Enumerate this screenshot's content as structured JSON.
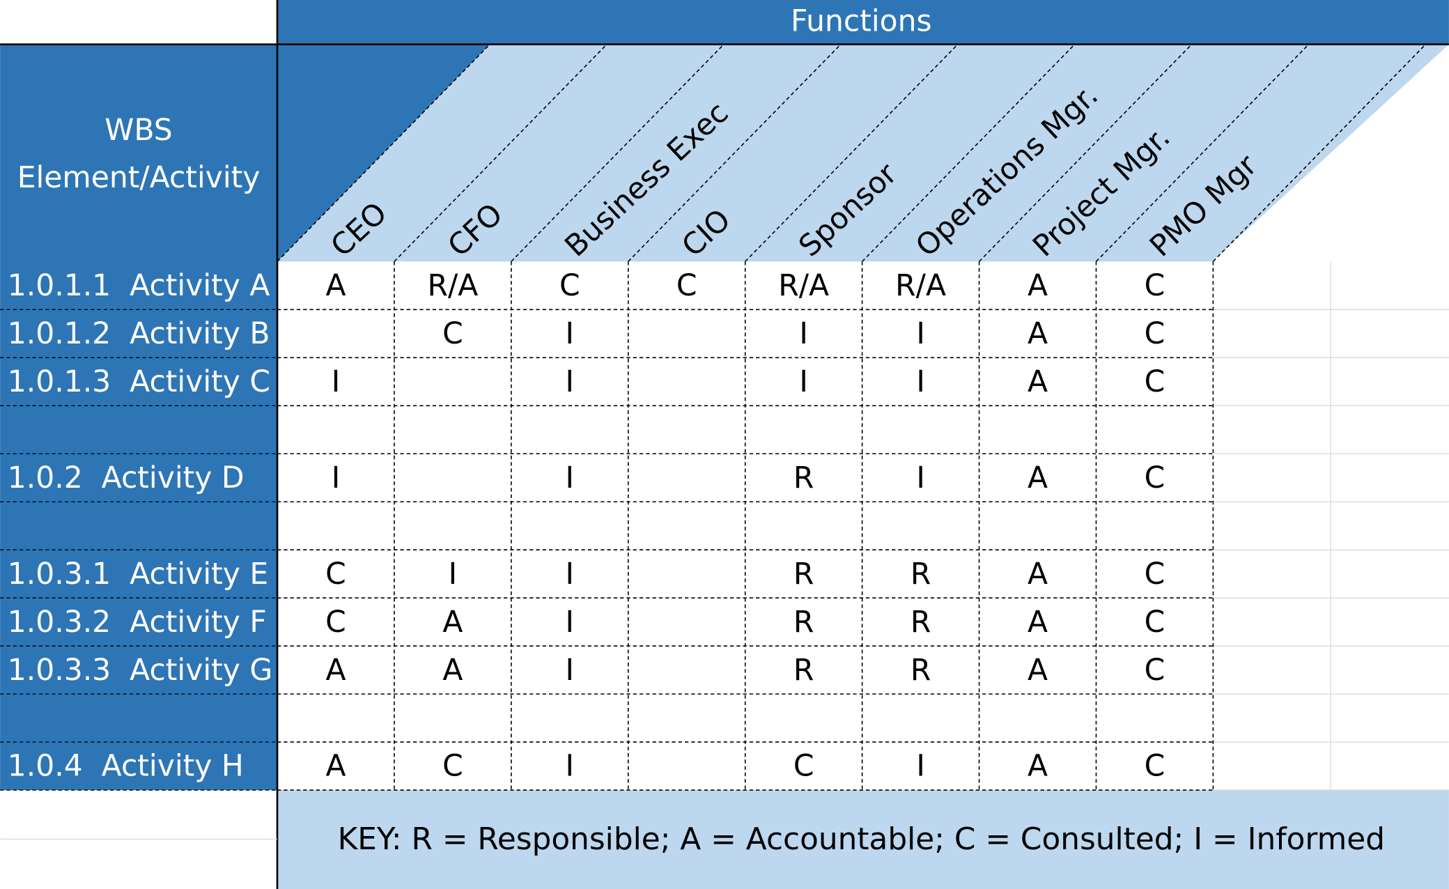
{
  "header": {
    "functions": "Functions",
    "wbs_lines": [
      "WBS",
      "Element/Activity"
    ]
  },
  "columns": [
    "CEO",
    "CFO",
    "Business Exec",
    "CIO",
    "Sponsor",
    "Operations Mgr.",
    "Project Mgr.",
    "PMO Mgr"
  ],
  "groups": [
    [
      {
        "label": "1.0.1.1  Activity A",
        "cells": [
          "A",
          "R/A",
          "C",
          "C",
          "R/A",
          "R/A",
          "A",
          "C"
        ]
      },
      {
        "label": "1.0.1.2  Activity B",
        "cells": [
          null,
          "C",
          "I",
          null,
          "I",
          "I",
          "A",
          "C"
        ]
      },
      {
        "label": "1.0.1.3  Activity C",
        "cells": [
          "I",
          null,
          "I",
          null,
          "I",
          "I",
          "A",
          "C"
        ]
      }
    ],
    [
      {
        "label": "1.0.2  Activity D",
        "cells": [
          "I",
          null,
          "I",
          null,
          "R",
          "I",
          "A",
          "C"
        ]
      }
    ],
    [
      {
        "label": "1.0.3.1  Activity E",
        "cells": [
          "C",
          "I",
          "I",
          null,
          "R",
          "R",
          "A",
          "C"
        ]
      },
      {
        "label": "1.0.3.2  Activity F",
        "cells": [
          "C",
          "A",
          "I",
          null,
          "R",
          "R",
          "A",
          "C"
        ]
      },
      {
        "label": "1.0.3.3  Activity G",
        "cells": [
          "A",
          "A",
          "I",
          null,
          "R",
          "R",
          "A",
          "C"
        ]
      }
    ],
    [
      {
        "label": "1.0.4  Activity H",
        "cells": [
          "A",
          "C",
          "I",
          null,
          "C",
          "I",
          "A",
          "C"
        ]
      }
    ]
  ],
  "key": "KEY: R = Responsible; A = Accountable; C = Consulted; I = Informed"
}
